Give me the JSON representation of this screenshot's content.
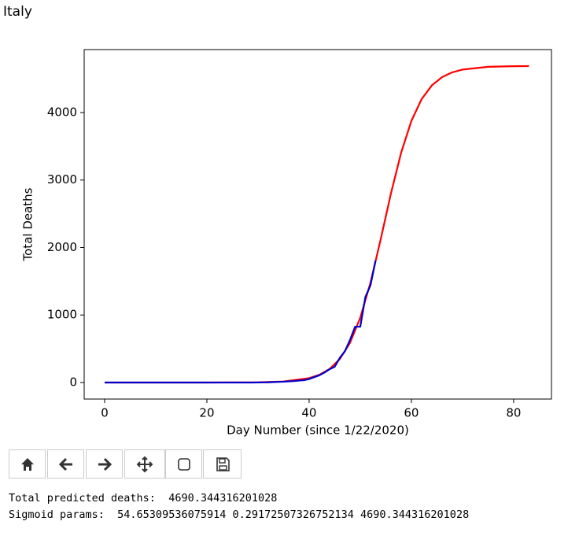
{
  "title": "Italy",
  "chart_data": {
    "type": "line",
    "xlabel": "Day Number (since 1/22/2020)",
    "ylabel": "Total Deaths",
    "xlim": [
      -4,
      87.4
    ],
    "ylim": [
      -245,
      4933
    ],
    "xticks": [
      0,
      20,
      40,
      60,
      80
    ],
    "yticks": [
      0,
      1000,
      2000,
      3000,
      4000
    ],
    "grid": false,
    "series": [
      {
        "color": "red",
        "x": [
          0,
          10,
          20,
          30,
          35,
          40,
          42,
          44,
          46,
          48,
          50,
          52,
          54,
          56,
          58,
          60,
          62,
          64,
          66,
          68,
          70,
          75,
          80,
          83
        ],
        "values": [
          0,
          0.01,
          0.19,
          3.5,
          15.1,
          64.4,
          114.4,
          200.8,
          347.9,
          588.8,
          960,
          1480,
          2123,
          2800,
          3406,
          3876,
          4199,
          4402,
          4525,
          4596,
          4637,
          4678,
          4687,
          4689
        ]
      },
      {
        "color": "#0000cc",
        "x": [
          0,
          1,
          2,
          3,
          4,
          5,
          6,
          7,
          8,
          9,
          10,
          11,
          12,
          13,
          14,
          15,
          16,
          17,
          18,
          19,
          20,
          21,
          22,
          23,
          24,
          25,
          26,
          27,
          28,
          29,
          30,
          31,
          32,
          33,
          34,
          35,
          36,
          37,
          38,
          39,
          40,
          41,
          42,
          43,
          44,
          45,
          46,
          47,
          48,
          49,
          50,
          51,
          52,
          53
        ],
        "values": [
          0,
          0,
          0,
          0,
          0,
          0,
          0,
          0,
          0,
          0,
          0,
          0,
          0,
          0,
          0,
          0,
          0,
          0,
          0,
          0,
          0,
          0,
          0,
          0,
          0,
          0,
          0,
          0,
          0,
          0,
          1,
          2,
          3,
          7,
          10,
          12,
          17,
          21,
          29,
          34,
          52,
          79,
          107,
          148,
          197,
          233,
          366,
          463,
          631,
          827,
          827,
          1266,
          1441,
          1809
        ]
      }
    ]
  },
  "output": [
    "Total predicted deaths:  4690.344316201028",
    "Sigmoid params:  54.65309536075914 0.29172507326752134 4690.344316201028"
  ]
}
